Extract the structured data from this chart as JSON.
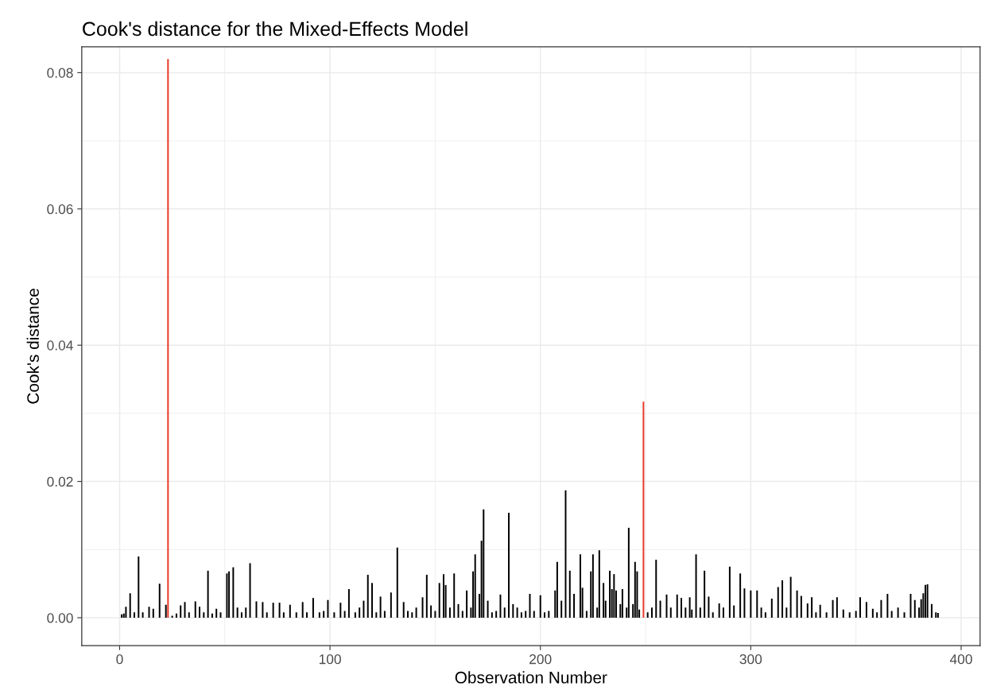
{
  "chart_data": {
    "type": "bar",
    "title": "Cook's distance for the Mixed-Effects Model",
    "xlabel": "Observation Number",
    "ylabel": "Cook's distance",
    "xlim": [
      -18,
      409
    ],
    "xticks": [
      0,
      100,
      200,
      300,
      400
    ],
    "ylim": [
      -0.0041,
      0.0838
    ],
    "yticks": [
      {
        "value": 0,
        "label": "0.00"
      },
      {
        "value": 0.02,
        "label": "0.02"
      },
      {
        "value": 0.04,
        "label": "0.04"
      },
      {
        "value": 0.06,
        "label": "0.06"
      },
      {
        "value": 0.08,
        "label": "0.08"
      }
    ],
    "grid": true,
    "series": [
      {
        "color": "#000000",
        "x": [
          1,
          2,
          3,
          5,
          7,
          9,
          11,
          14,
          16,
          19,
          22,
          25,
          27,
          29,
          31,
          33,
          36,
          38,
          40,
          42,
          44,
          46,
          48,
          51,
          52,
          54,
          56,
          58,
          60,
          62,
          65,
          68,
          70,
          73,
          76,
          78,
          81,
          84,
          87,
          89,
          92,
          95,
          97,
          99,
          102,
          105,
          107,
          109,
          112,
          114,
          116,
          118,
          120,
          122,
          124,
          126,
          129,
          132,
          135,
          137,
          139,
          141,
          144,
          146,
          148,
          150,
          152,
          154,
          155,
          157,
          159,
          161,
          163,
          165,
          167,
          168,
          169,
          171,
          172,
          173,
          175,
          177,
          179,
          181,
          183,
          185,
          187,
          189,
          191,
          193,
          195,
          197,
          200,
          202,
          204,
          207,
          208,
          210,
          212,
          214,
          216,
          219,
          220,
          222,
          224,
          225,
          227,
          228,
          230,
          231,
          233,
          234,
          235,
          236,
          238,
          239,
          241,
          242,
          244,
          245,
          246,
          247,
          251,
          253,
          255,
          257,
          260,
          262,
          265,
          267,
          269,
          271,
          272,
          274,
          276,
          278,
          280,
          282,
          285,
          287,
          290,
          292,
          295,
          297,
          300,
          303,
          305,
          307,
          310,
          313,
          315,
          317,
          319,
          322,
          324,
          327,
          329,
          331,
          333,
          336,
          339,
          341,
          344,
          347,
          350,
          352,
          355,
          358,
          360,
          362,
          365,
          367,
          370,
          373,
          376,
          378,
          380,
          381,
          382,
          383,
          384,
          386,
          388,
          389
        ],
        "values": [
          0.0005,
          0.0006,
          0.0016,
          0.0036,
          0.0008,
          0.009,
          0.0008,
          0.0016,
          0.0013,
          0.005,
          0.0019,
          0.0003,
          0.0006,
          0.0018,
          0.0023,
          0.0008,
          0.0024,
          0.0016,
          0.0008,
          0.0069,
          0.0006,
          0.0013,
          0.0008,
          0.0065,
          0.0068,
          0.0074,
          0.0015,
          0.0008,
          0.0015,
          0.008,
          0.0024,
          0.0023,
          0.0008,
          0.0022,
          0.0022,
          0.0008,
          0.0019,
          0.0008,
          0.0023,
          0.0008,
          0.0029,
          0.0008,
          0.001,
          0.0026,
          0.0008,
          0.0022,
          0.001,
          0.0042,
          0.0008,
          0.0015,
          0.0025,
          0.0063,
          0.0051,
          0.0008,
          0.0031,
          0.001,
          0.0037,
          0.0103,
          0.0023,
          0.001,
          0.0008,
          0.0015,
          0.003,
          0.0063,
          0.0018,
          0.001,
          0.0051,
          0.0064,
          0.0048,
          0.0015,
          0.0065,
          0.002,
          0.001,
          0.004,
          0.0015,
          0.0068,
          0.0093,
          0.0035,
          0.0113,
          0.0159,
          0.0025,
          0.0008,
          0.001,
          0.0034,
          0.0015,
          0.0154,
          0.002,
          0.0015,
          0.0008,
          0.001,
          0.0035,
          0.001,
          0.0033,
          0.0008,
          0.001,
          0.004,
          0.0082,
          0.0025,
          0.0187,
          0.0069,
          0.0035,
          0.0093,
          0.0044,
          0.001,
          0.0068,
          0.0093,
          0.0015,
          0.0099,
          0.0051,
          0.0025,
          0.0069,
          0.0042,
          0.0064,
          0.004,
          0.002,
          0.0042,
          0.0015,
          0.0132,
          0.002,
          0.0082,
          0.0068,
          0.0012,
          0.0008,
          0.0015,
          0.0085,
          0.0025,
          0.0034,
          0.0015,
          0.0034,
          0.0029,
          0.0015,
          0.003,
          0.0012,
          0.0093,
          0.0015,
          0.0069,
          0.0031,
          0.0008,
          0.0021,
          0.0015,
          0.0075,
          0.0018,
          0.0065,
          0.0043,
          0.004,
          0.004,
          0.0015,
          0.0008,
          0.0028,
          0.0045,
          0.0055,
          0.0015,
          0.006,
          0.004,
          0.0032,
          0.0021,
          0.003,
          0.0008,
          0.0019,
          0.0008,
          0.0026,
          0.003,
          0.0012,
          0.0008,
          0.001,
          0.003,
          0.0023,
          0.0013,
          0.0008,
          0.0026,
          0.0035,
          0.001,
          0.0015,
          0.0008,
          0.0035,
          0.0026,
          0.0015,
          0.0027,
          0.0036,
          0.0048,
          0.0049,
          0.002,
          0.0008,
          0.0007
        ]
      },
      {
        "color": "#e8392b",
        "x": [
          23,
          249
        ],
        "values": [
          0.082,
          0.0317
        ]
      }
    ]
  }
}
